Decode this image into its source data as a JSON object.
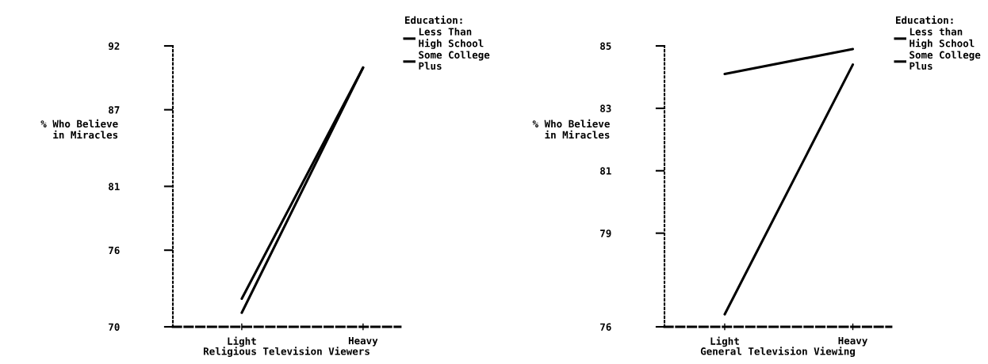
{
  "chart_data": [
    {
      "type": "line",
      "xlabel": "Religious Television Viewers",
      "ylabel": "% Who Believe\nin Miracles",
      "legend_title": "Education:",
      "legend": "top right",
      "categories": [
        "Light",
        "Heavy"
      ],
      "ylim": [
        70,
        92
      ],
      "yticks": [
        70,
        76,
        81,
        87,
        92
      ],
      "series": [
        {
          "name": "Less Than\nHigh School",
          "color": "#000000",
          "values": [
            72.2,
            90.3
          ]
        },
        {
          "name": "Some College\nPlus",
          "color": "#000000",
          "values": [
            71.1,
            90.3
          ]
        }
      ]
    },
    {
      "type": "line",
      "xlabel": "General Television Viewing",
      "ylabel": "% Who Believe\nin Miracles",
      "legend_title": "Education:",
      "legend": "top right",
      "categories": [
        "Light",
        "Heavy"
      ],
      "ylim": [
        76,
        85
      ],
      "yticks": [
        76,
        79,
        81,
        83,
        85
      ],
      "series": [
        {
          "name": "Less than\nHigh School",
          "color": "#000000",
          "values": [
            84.1,
            84.9
          ]
        },
        {
          "name": "Some College\nPlus",
          "color": "#000000",
          "values": [
            76.4,
            84.4
          ]
        }
      ]
    }
  ]
}
